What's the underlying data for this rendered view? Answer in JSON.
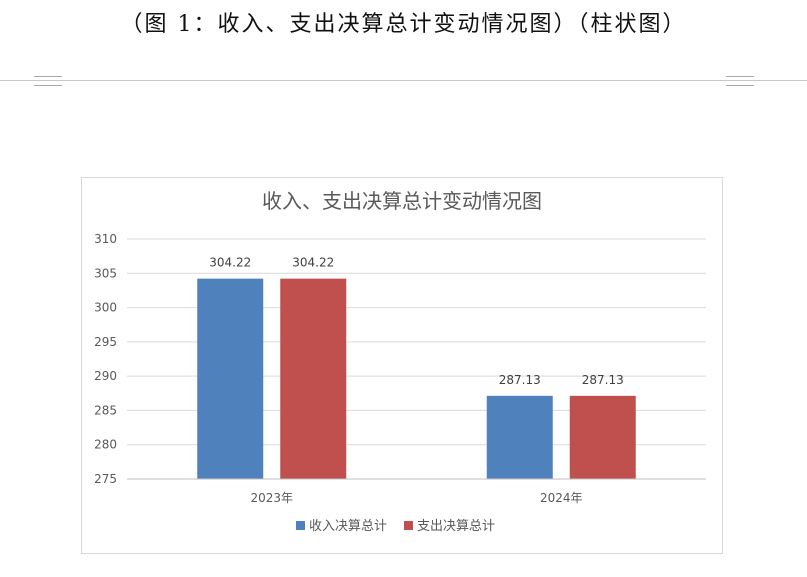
{
  "page": {
    "heading": "（图 1：收入、支出决算总计变动情况图）（柱状图）"
  },
  "chart_data": {
    "type": "bar",
    "title": "收入、支出决算总计变动情况图",
    "categories": [
      "2023年",
      "2024年"
    ],
    "series": [
      {
        "name": "收入决算总计",
        "values": [
          304.22,
          287.13
        ],
        "color": "#4f81bd"
      },
      {
        "name": "支出决算总计",
        "values": [
          304.22,
          287.13
        ],
        "color": "#c0504d"
      }
    ],
    "ylim": [
      275,
      310
    ],
    "yticks": [
      275,
      280,
      285,
      290,
      295,
      300,
      305,
      310
    ],
    "grid": true,
    "legend": "bottom",
    "data_labels": true
  }
}
